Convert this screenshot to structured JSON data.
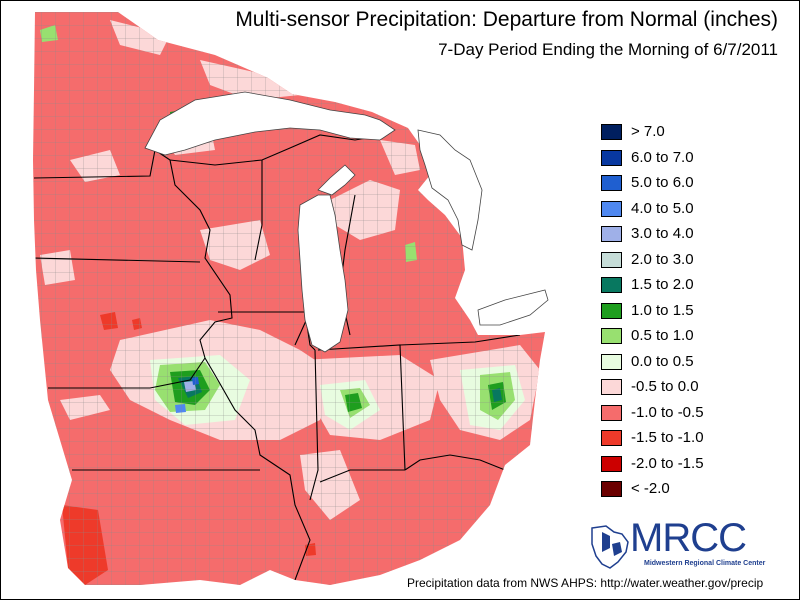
{
  "title": "Multi-sensor Precipitation: Departure from Normal (inches)",
  "subtitle": "7-Day Period Ending the Morning of 6/7/2011",
  "legend": [
    {
      "label": "> 7.0",
      "color": "#001f5f"
    },
    {
      "label": "6.0 to 7.0",
      "color": "#0838a0"
    },
    {
      "label": "5.0 to 6.0",
      "color": "#1f5fd0"
    },
    {
      "label": "4.0 to 5.0",
      "color": "#4f88f0"
    },
    {
      "label": "3.0 to 4.0",
      "color": "#9fb0e8"
    },
    {
      "label": "2.0 to 3.0",
      "color": "#c6ddd8"
    },
    {
      "label": "1.5 to 2.0",
      "color": "#087860"
    },
    {
      "label": "1.0 to 1.5",
      "color": "#1e9e1e"
    },
    {
      "label": "0.5 to 1.0",
      "color": "#98e070"
    },
    {
      "label": "0.0 to 0.5",
      "color": "#e8fce0"
    },
    {
      "label": "-0.5 to 0.0",
      "color": "#fcd8d8"
    },
    {
      "label": "-1.0 to -0.5",
      "color": "#f56c6c"
    },
    {
      "label": "-1.5 to -1.0",
      "color": "#ee3a2a"
    },
    {
      "label": "-2.0 to -1.5",
      "color": "#cc0000"
    },
    {
      "label": "< -2.0",
      "color": "#6b0000"
    }
  ],
  "logo": {
    "name": "MRCC",
    "subtitle": "Midwestern Regional Climate Center"
  },
  "credit": "Precipitation data from NWS AHPS:  http://water.weather.gov/precip",
  "colors": {
    "background": "#ffffff",
    "dominant": "#f56c6c",
    "county_lines": "#8a8a8a",
    "state_lines": "#000000"
  }
}
